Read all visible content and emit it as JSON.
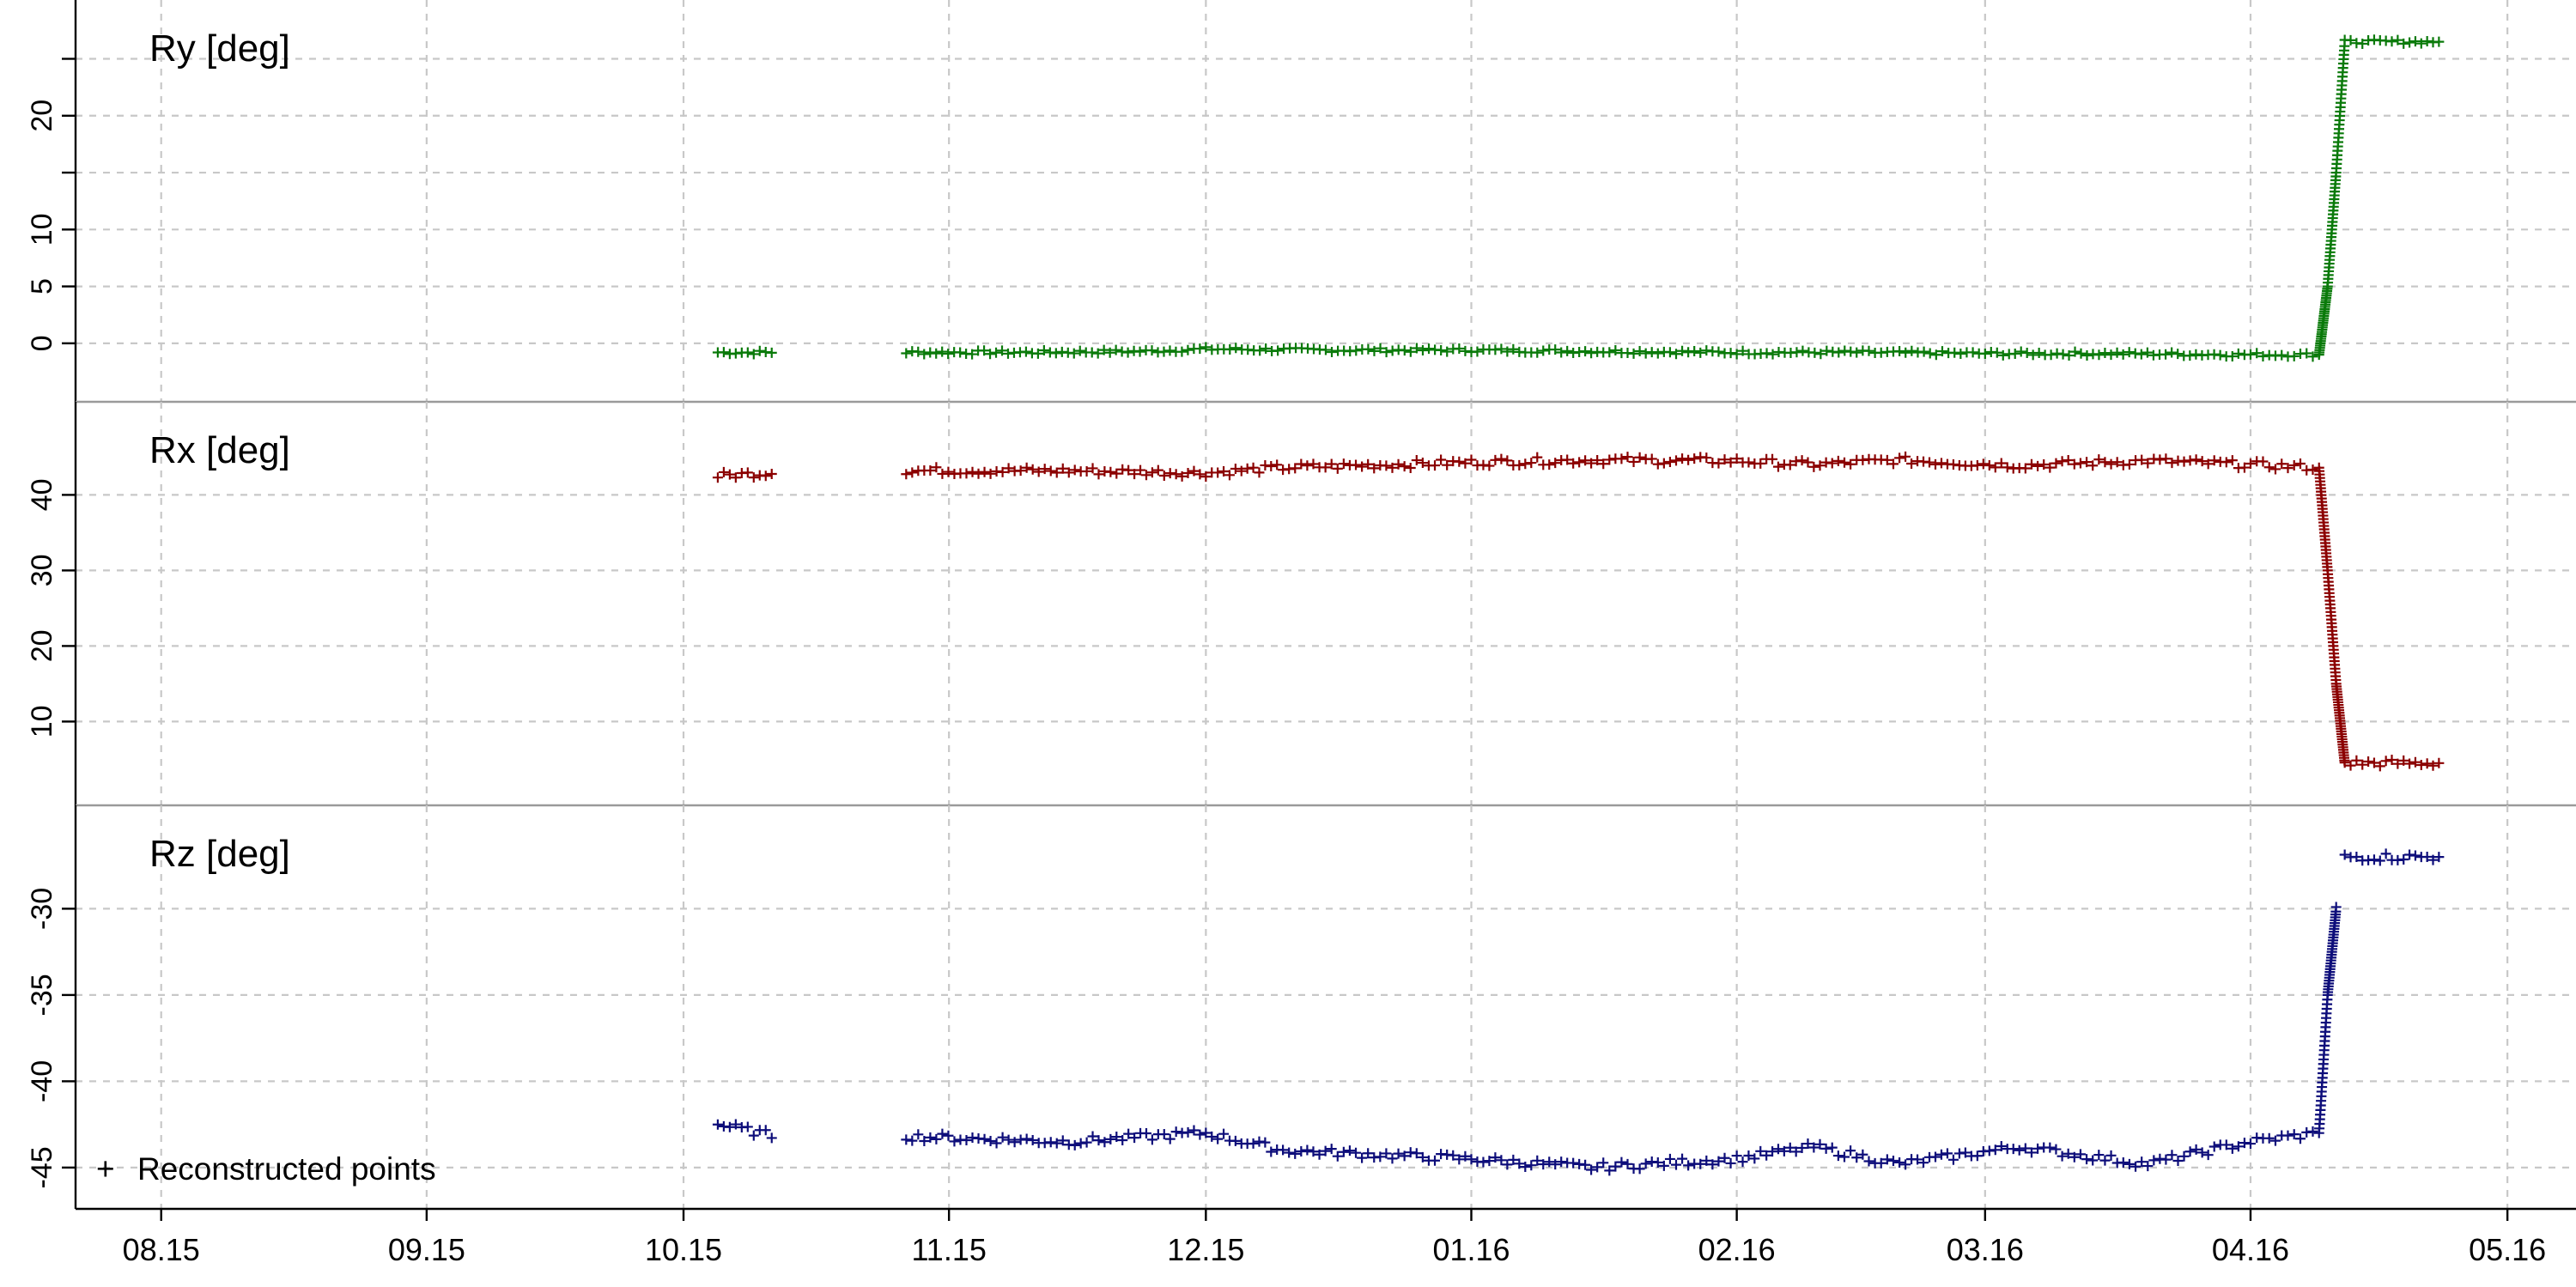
{
  "chart_data": {
    "type": "scatter",
    "marker": "+",
    "legend": {
      "label": "Reconstructed points",
      "symbol": "+",
      "position": "bottom-left"
    },
    "grid": true,
    "x_axis": {
      "type": "date",
      "ticks": [
        {
          "date": "2015-08-01",
          "label": "08.15"
        },
        {
          "date": "2015-09-01",
          "label": "09.15"
        },
        {
          "date": "2015-10-01",
          "label": "10.15"
        },
        {
          "date": "2015-11-01",
          "label": "11.15"
        },
        {
          "date": "2015-12-01",
          "label": "12.15"
        },
        {
          "date": "2016-01-01",
          "label": "01.16"
        },
        {
          "date": "2016-02-01",
          "label": "02.16"
        },
        {
          "date": "2016-03-01",
          "label": "03.16"
        },
        {
          "date": "2016-04-01",
          "label": "04.16"
        },
        {
          "date": "2016-05-01",
          "label": "05.16"
        }
      ],
      "xlim": [
        "2015-07-22",
        "2016-05-06"
      ]
    },
    "panels": [
      {
        "title": "Ry  [deg]",
        "color": "#0a7a0a",
        "ylim": [
          -2.5,
          27
        ],
        "ticks": [
          0,
          5,
          10,
          15,
          20,
          25
        ],
        "tick_labels": [
          "0",
          "5",
          "10",
          "",
          "20",
          ""
        ],
        "points": [
          [
            "2015-10-05",
            -0.8
          ],
          [
            "2015-10-12",
            -0.8
          ],
          [
            "2015-10-27",
            -0.8
          ],
          [
            "2015-11-10",
            -0.8
          ],
          [
            "2015-11-24",
            -0.7
          ],
          [
            "2015-12-01",
            -0.5
          ],
          [
            "2015-12-15",
            -0.6
          ],
          [
            "2016-01-01",
            -0.6
          ],
          [
            "2016-01-15",
            -0.7
          ],
          [
            "2016-02-01",
            -0.8
          ],
          [
            "2016-02-15",
            -0.8
          ],
          [
            "2016-03-01",
            -0.9
          ],
          [
            "2016-03-15",
            -0.9
          ],
          [
            "2016-04-01",
            -1.0
          ],
          [
            "2016-04-09",
            -1.0
          ],
          [
            "2016-04-10",
            5.0
          ],
          [
            "2016-04-11",
            15.0
          ],
          [
            "2016-04-12",
            26.5
          ],
          [
            "2016-04-23",
            26.5
          ]
        ]
      },
      {
        "title": "Rx  [deg]",
        "color": "#8b0000",
        "ylim": [
          3,
          45.5
        ],
        "ticks": [
          10,
          20,
          30,
          40
        ],
        "tick_labels": [
          "10",
          "20",
          "30",
          "40"
        ],
        "points": [
          [
            "2015-10-05",
            42.5
          ],
          [
            "2015-10-12",
            43.0
          ],
          [
            "2015-10-27",
            43.2
          ],
          [
            "2015-11-15",
            43.2
          ],
          [
            "2015-12-01",
            42.9
          ],
          [
            "2015-12-10",
            43.6
          ],
          [
            "2016-01-01",
            44.3
          ],
          [
            "2016-01-15",
            44.6
          ],
          [
            "2016-02-01",
            44.5
          ],
          [
            "2016-02-10",
            44.0
          ],
          [
            "2016-02-20",
            44.6
          ],
          [
            "2016-03-05",
            43.9
          ],
          [
            "2016-03-20",
            44.5
          ],
          [
            "2016-04-01",
            44.0
          ],
          [
            "2016-04-09",
            43.6
          ],
          [
            "2016-04-10",
            30.0
          ],
          [
            "2016-04-11",
            15.0
          ],
          [
            "2016-04-12",
            4.5
          ],
          [
            "2016-04-23",
            4.5
          ]
        ]
      },
      {
        "title": "Rz  [deg]",
        "color": "#0d0d7a",
        "ylim": [
          -46.2,
          -26
        ],
        "ticks": [
          -45,
          -40,
          -35,
          -30
        ],
        "tick_labels": [
          "-45",
          "-40",
          "-35",
          "-30"
        ],
        "points": [
          [
            "2015-10-05",
            -42.5
          ],
          [
            "2015-10-12",
            -43.2
          ],
          [
            "2015-10-27",
            -43.2
          ],
          [
            "2015-11-15",
            -43.5
          ],
          [
            "2015-12-01",
            -43.0
          ],
          [
            "2015-12-10",
            -44.0
          ],
          [
            "2016-01-01",
            -44.5
          ],
          [
            "2016-01-15",
            -45.0
          ],
          [
            "2016-02-01",
            -44.5
          ],
          [
            "2016-02-10",
            -43.8
          ],
          [
            "2016-02-20",
            -44.8
          ],
          [
            "2016-03-05",
            -43.8
          ],
          [
            "2016-03-20",
            -44.8
          ],
          [
            "2016-04-01",
            -43.5
          ],
          [
            "2016-04-09",
            -43.0
          ],
          [
            "2016-04-10",
            -35.0
          ],
          [
            "2016-04-11",
            -30.0
          ],
          [
            "2016-04-12",
            -27.0
          ],
          [
            "2016-04-23",
            -27.0
          ]
        ]
      }
    ]
  }
}
